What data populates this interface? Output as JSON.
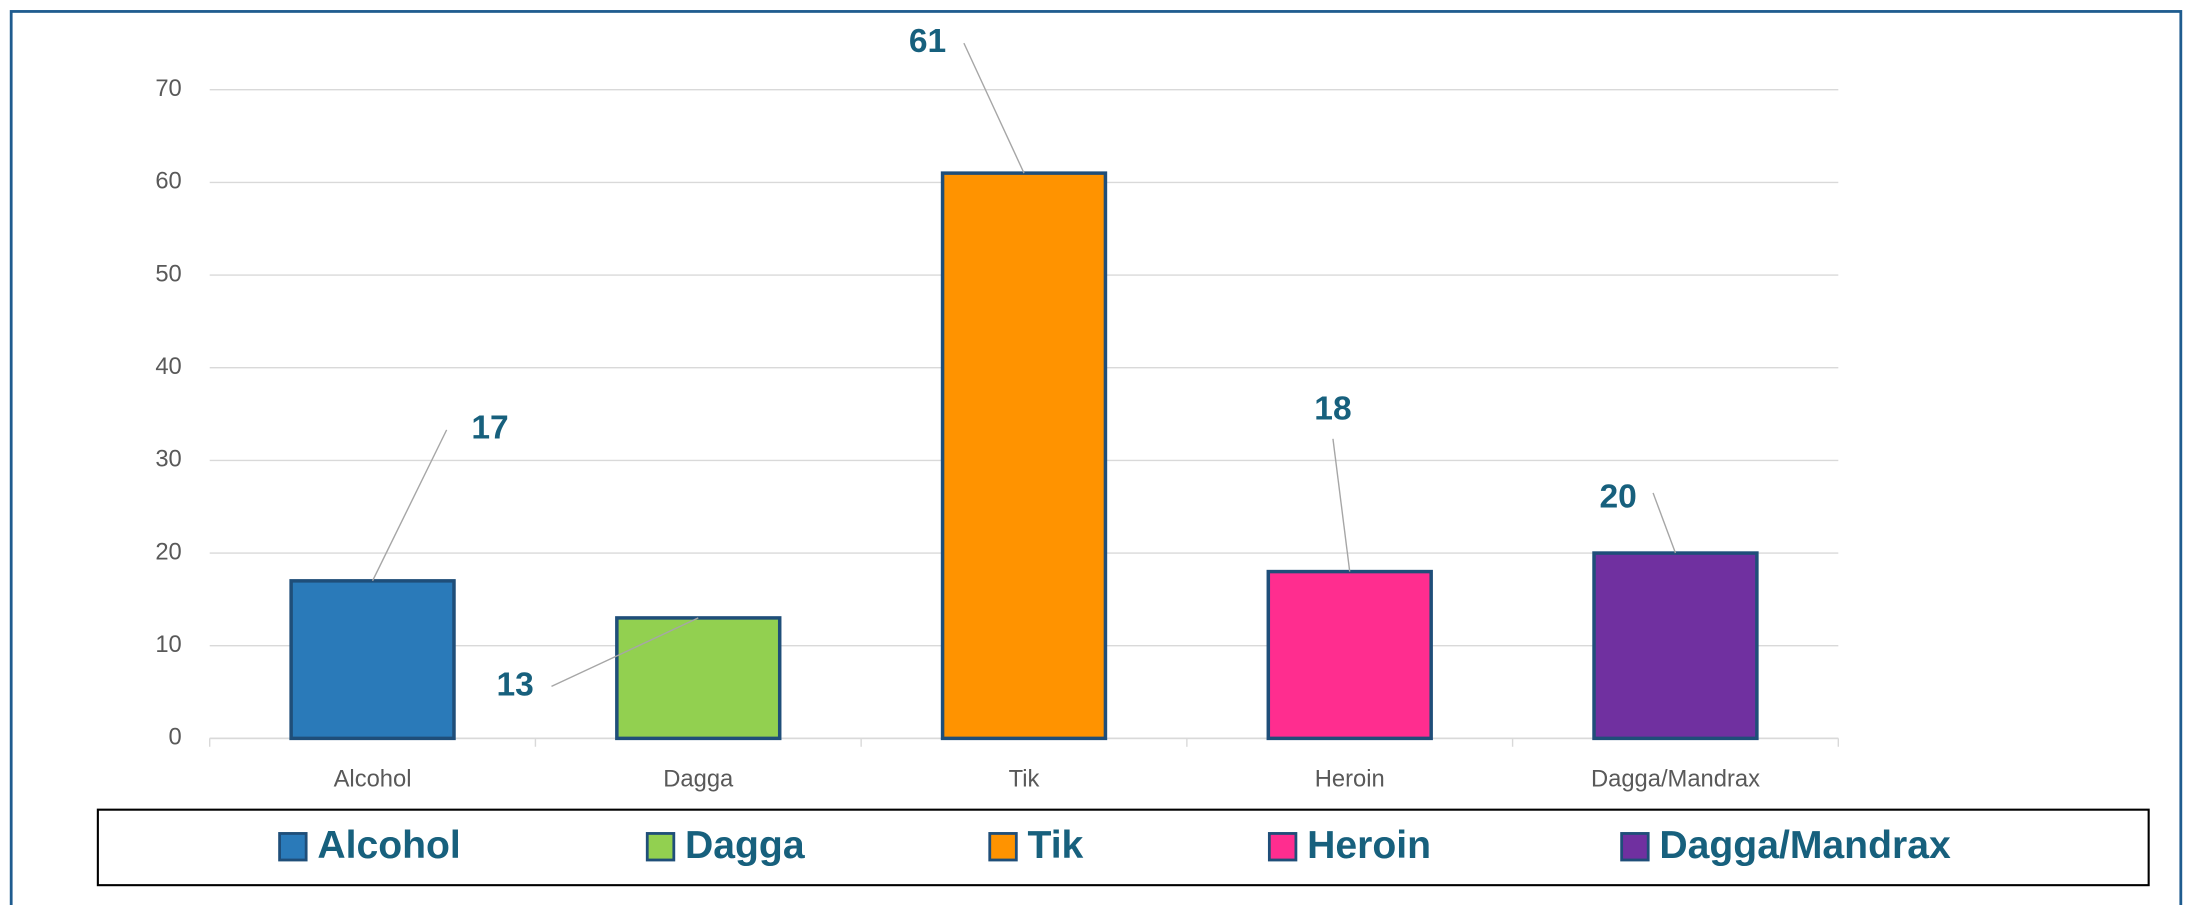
{
  "chart_data": {
    "type": "bar",
    "categories": [
      "Alcohol",
      "Dagga",
      "Tik",
      "Heroin",
      "Dagga/Mandrax"
    ],
    "values": [
      17,
      13,
      61,
      18,
      20
    ],
    "colors": [
      "#2a7ab9",
      "#92d050",
      "#ff9300",
      "#ff2d8f",
      "#7030a0"
    ],
    "ylim": [
      0,
      70
    ],
    "yticks": [
      0,
      10,
      20,
      30,
      40,
      50,
      60,
      70
    ],
    "grid": true,
    "legend": "bottom"
  }
}
